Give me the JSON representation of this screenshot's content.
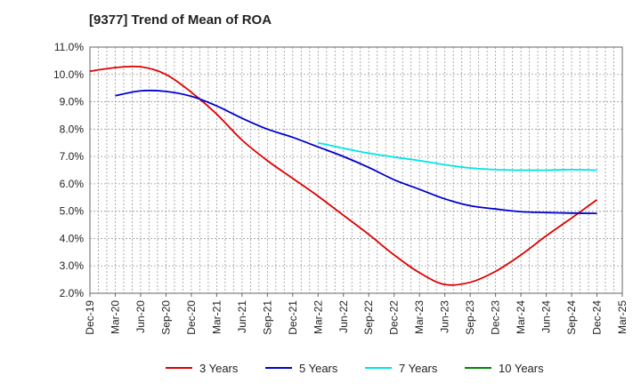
{
  "chart_data": {
    "type": "line",
    "title": "[9377]  Trend of Mean of ROA",
    "xlabel": "",
    "ylabel": "",
    "ylim": [
      2.0,
      11.0
    ],
    "yticks": [
      "2.0%",
      "3.0%",
      "4.0%",
      "5.0%",
      "6.0%",
      "7.0%",
      "8.0%",
      "9.0%",
      "10.0%",
      "11.0%"
    ],
    "categories": [
      "Dec-19",
      "Mar-20",
      "Jun-20",
      "Sep-20",
      "Dec-20",
      "Mar-21",
      "Jun-21",
      "Sep-21",
      "Dec-21",
      "Mar-22",
      "Jun-22",
      "Sep-22",
      "Dec-22",
      "Mar-23",
      "Jun-23",
      "Sep-23",
      "Dec-23",
      "Mar-24",
      "Jun-24",
      "Sep-24",
      "Dec-24",
      "Mar-25"
    ],
    "grid": true,
    "legend_position": "bottom",
    "series": [
      {
        "name": "3 Years",
        "color": "#dd0000",
        "values": [
          10.12,
          10.25,
          10.28,
          10.0,
          9.35,
          8.55,
          7.6,
          6.85,
          6.2,
          5.55,
          4.85,
          4.15,
          3.4,
          2.75,
          2.32,
          2.4,
          2.8,
          3.4,
          4.1,
          4.75,
          5.42,
          null
        ]
      },
      {
        "name": "5 Years",
        "color": "#0000cc",
        "values": [
          null,
          9.22,
          9.4,
          9.38,
          9.2,
          8.85,
          8.4,
          8.0,
          7.7,
          7.35,
          7.0,
          6.6,
          6.15,
          5.8,
          5.45,
          5.2,
          5.08,
          4.98,
          4.95,
          4.93,
          4.92,
          null
        ]
      },
      {
        "name": "7 Years",
        "color": "#00e5e5",
        "values": [
          null,
          null,
          null,
          null,
          null,
          null,
          null,
          null,
          null,
          7.5,
          7.3,
          7.12,
          6.98,
          6.85,
          6.7,
          6.58,
          6.52,
          6.5,
          6.5,
          6.52,
          6.5,
          null
        ]
      },
      {
        "name": "10 Years",
        "color": "#008800",
        "values": [
          null,
          null,
          null,
          null,
          null,
          null,
          null,
          null,
          null,
          null,
          null,
          null,
          null,
          null,
          null,
          null,
          null,
          null,
          null,
          null,
          null,
          null
        ]
      }
    ]
  }
}
